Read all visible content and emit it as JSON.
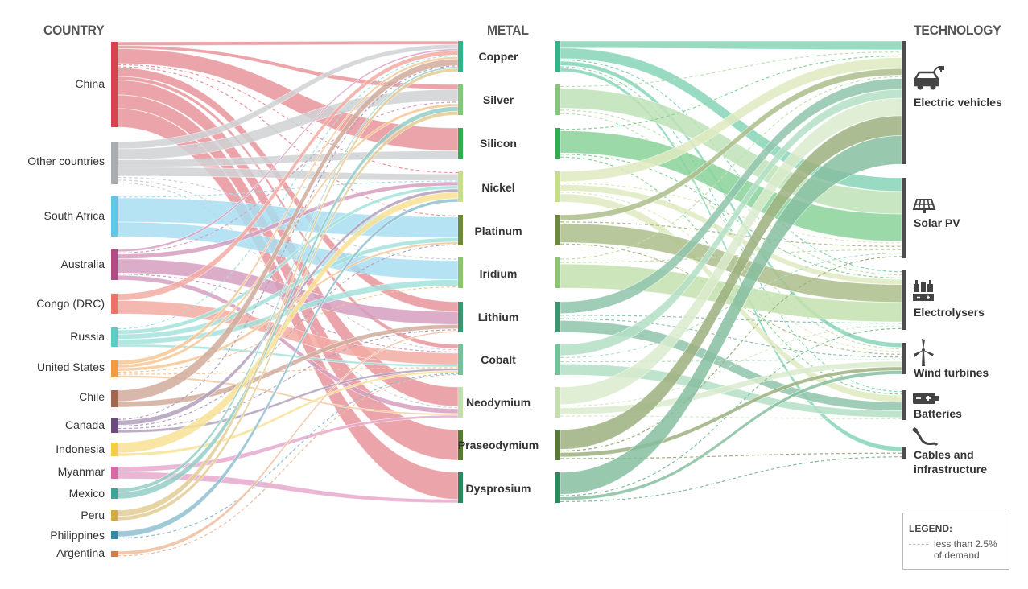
{
  "headers": {
    "country": "COUNTRY",
    "metal": "METAL",
    "technology": "TECHNOLOGY"
  },
  "countries": [
    {
      "name": "China",
      "color": "#d9414f",
      "flow": "#e7959b"
    },
    {
      "name": "Other countries",
      "color": "#a9acb0",
      "flow": "#cfd1d4"
    },
    {
      "name": "South Africa",
      "color": "#5fc7ea",
      "flow": "#a9def2"
    },
    {
      "name": "Australia",
      "color": "#b04b86",
      "flow": "#d69fbf"
    },
    {
      "name": "Congo (DRC)",
      "color": "#ec7365",
      "flow": "#f2aca3"
    },
    {
      "name": "Russia",
      "color": "#5ccdc4",
      "flow": "#a3e2dc"
    },
    {
      "name": "United States",
      "color": "#f19b46",
      "flow": "#f4c795"
    },
    {
      "name": "Chile",
      "color": "#a7664b",
      "flow": "#d1ab9b"
    },
    {
      "name": "Canada",
      "color": "#6c4c7e",
      "flow": "#b1a0bb"
    },
    {
      "name": "Indonesia",
      "color": "#f7cd3d",
      "flow": "#f9e294"
    },
    {
      "name": "Myanmar",
      "color": "#d56aa6",
      "flow": "#e6a9cb"
    },
    {
      "name": "Mexico",
      "color": "#3ea596",
      "flow": "#93cec5"
    },
    {
      "name": "Peru",
      "color": "#d4a93d",
      "flow": "#e3cd94"
    },
    {
      "name": "Philippines",
      "color": "#2f8aa6",
      "flow": "#8fbfd0"
    },
    {
      "name": "Argentina",
      "color": "#e0793a",
      "flow": "#eebd9d"
    }
  ],
  "metals": [
    {
      "name": "Copper",
      "color": "#2fb58a",
      "flow": "#86d5b7"
    },
    {
      "name": "Silver",
      "color": "#84c67c",
      "flow": "#bfe2b8"
    },
    {
      "name": "Silicon",
      "color": "#2fae4e",
      "flow": "#89d29a"
    },
    {
      "name": "Nickel",
      "color": "#c6dd8c",
      "flow": "#dfeabf"
    },
    {
      "name": "Platinum",
      "color": "#6d8a3a",
      "flow": "#adbd8c"
    },
    {
      "name": "Iridium",
      "color": "#8bc66e",
      "flow": "#c3e0ae"
    },
    {
      "name": "Lithium",
      "color": "#3d9670",
      "flow": "#8fc4ac"
    },
    {
      "name": "Cobalt",
      "color": "#74c29c",
      "flow": "#b3dfc6"
    },
    {
      "name": "Neodymium",
      "color": "#c3dfae",
      "flow": "#d9ebcd"
    },
    {
      "name": "Praseodymium",
      "color": "#587a33",
      "flow": "#9db07f"
    },
    {
      "name": "Dysprosium",
      "color": "#2a8a5d",
      "flow": "#86bea0"
    }
  ],
  "technologies": [
    {
      "lines": [
        "Electric vehicles"
      ],
      "icon": "electric-vehicle-icon"
    },
    {
      "lines": [
        "Solar PV"
      ],
      "icon": "solar-panel-icon"
    },
    {
      "lines": [
        "Electrolysers"
      ],
      "icon": "electrolyser-icon"
    },
    {
      "lines": [
        "Wind turbines"
      ],
      "icon": "wind-turbine-icon"
    },
    {
      "lines": [
        "Batteries"
      ],
      "icon": "battery-icon"
    },
    {
      "lines": [
        "Cables and",
        "infrastructure"
      ],
      "icon": "cable-icon"
    }
  ],
  "tech_node_color": "#4d4d4d",
  "legend": {
    "title": "LEGEND:",
    "text_line1": "less than 2.5%",
    "text_line2": "of demand"
  }
}
